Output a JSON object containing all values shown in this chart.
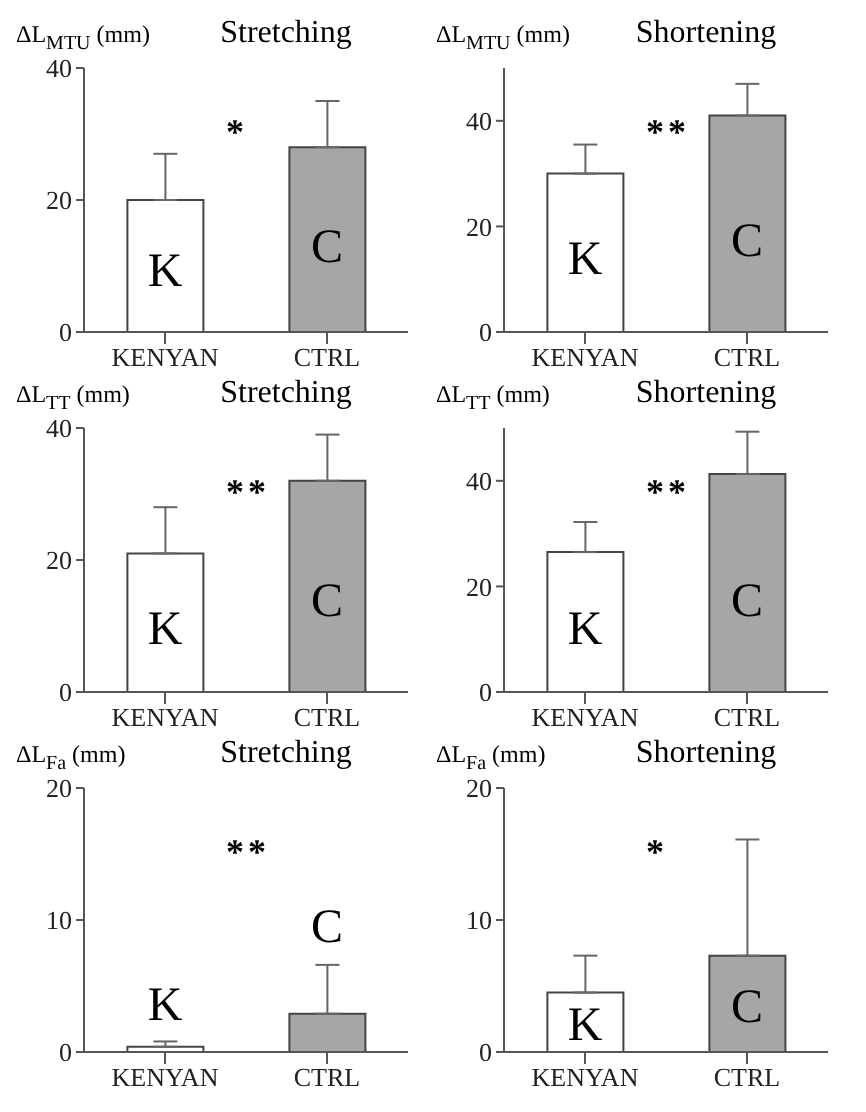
{
  "chart_data": [
    {
      "type": "bar",
      "title": "Stretching",
      "ylabel": "ΔL$_{MTU}$ (mm)",
      "categories": [
        "KENYAN",
        "CTRL"
      ],
      "values": [
        20,
        28
      ],
      "errors": [
        7,
        7
      ],
      "colors": [
        "#ffffff",
        "#a6a6a6"
      ],
      "ylim": [
        0,
        40
      ],
      "yticks": [
        0,
        20,
        40
      ],
      "annotations": [
        "K",
        "C",
        "*"
      ]
    },
    {
      "type": "bar",
      "title": "Shortening",
      "ylabel": "ΔL$_{MTU}$ (mm)",
      "categories": [
        "KENYAN",
        "CTRL"
      ],
      "values": [
        30,
        41
      ],
      "errors": [
        5.5,
        6
      ],
      "colors": [
        "#ffffff",
        "#a6a6a6"
      ],
      "ylim": [
        0,
        50
      ],
      "yticks": [
        0,
        20,
        40
      ],
      "annotations": [
        "K",
        "C",
        "**"
      ]
    },
    {
      "type": "bar",
      "title": "Stretching",
      "ylabel": "ΔL$_{TT}$ (mm)",
      "categories": [
        "KENYAN",
        "CTRL"
      ],
      "values": [
        21,
        32
      ],
      "errors": [
        7,
        7
      ],
      "colors": [
        "#ffffff",
        "#a6a6a6"
      ],
      "ylim": [
        0,
        40
      ],
      "yticks": [
        0,
        20,
        40
      ],
      "annotations": [
        "K",
        "C",
        "**"
      ]
    },
    {
      "type": "bar",
      "title": "Shortening",
      "ylabel": "ΔL$_{TT}$ (mm)",
      "categories": [
        "KENYAN",
        "CTRL"
      ],
      "values": [
        26.5,
        41.3
      ],
      "errors": [
        5.7,
        8
      ],
      "colors": [
        "#ffffff",
        "#a6a6a6"
      ],
      "ylim": [
        0,
        50
      ],
      "yticks": [
        0,
        20,
        40
      ],
      "annotations": [
        "K",
        "C",
        "**"
      ]
    },
    {
      "type": "bar",
      "title": "Stretching",
      "ylabel": "ΔL$_{Fa}$ (mm)",
      "categories": [
        "KENYAN",
        "CTRL"
      ],
      "values": [
        0.4,
        2.9
      ],
      "errors": [
        0.4,
        3.7
      ],
      "colors": [
        "#ffffff",
        "#a6a6a6"
      ],
      "ylim": [
        0,
        20
      ],
      "yticks": [
        0,
        10,
        20
      ],
      "annotations": [
        "K",
        "C",
        "**"
      ]
    },
    {
      "type": "bar",
      "title": "Shortening",
      "ylabel": "ΔL$_{Fa}$ (mm)",
      "categories": [
        "KENYAN",
        "CTRL"
      ],
      "values": [
        4.5,
        7.3
      ],
      "errors": [
        2.8,
        8.8
      ],
      "colors": [
        "#ffffff",
        "#a6a6a6"
      ],
      "ylim": [
        0,
        20
      ],
      "yticks": [
        0,
        10,
        20
      ],
      "annotations": [
        "K",
        "C",
        "*"
      ]
    }
  ]
}
